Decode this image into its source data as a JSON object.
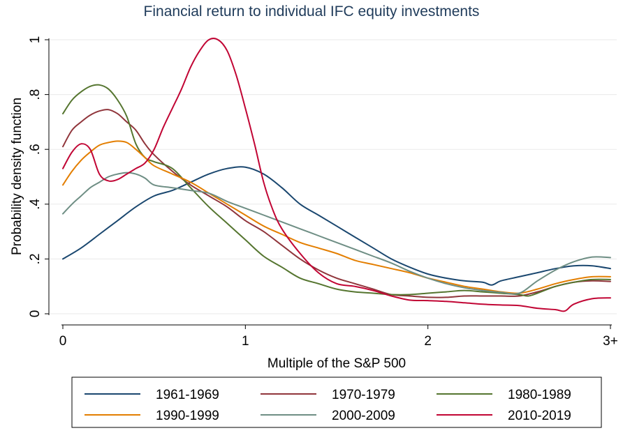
{
  "chart_data": {
    "type": "line",
    "title": "Financial return to individual IFC equity investments",
    "xlabel": "Multiple of the S&P 500",
    "ylabel": "Probability density function",
    "xlim": [
      0,
      3
    ],
    "ylim": [
      0,
      1
    ],
    "xticks": [
      {
        "value": 0,
        "label": "0"
      },
      {
        "value": 1,
        "label": "1"
      },
      {
        "value": 2,
        "label": "2"
      },
      {
        "value": 3,
        "label": "3+"
      }
    ],
    "yticks": [
      {
        "value": 0,
        "label": "0"
      },
      {
        "value": 0.2,
        "label": ".2"
      },
      {
        "value": 0.4,
        "label": ".4"
      },
      {
        "value": 0.6,
        "label": ".6"
      },
      {
        "value": 0.8,
        "label": ".8"
      },
      {
        "value": 1,
        "label": "1"
      }
    ],
    "grid": "horizontal",
    "legend_position": "bottom",
    "series": [
      {
        "name": "1961-1969",
        "color": "#1a476f",
        "points": [
          [
            0,
            0.2
          ],
          [
            0.1,
            0.24
          ],
          [
            0.2,
            0.29
          ],
          [
            0.3,
            0.34
          ],
          [
            0.4,
            0.39
          ],
          [
            0.5,
            0.43
          ],
          [
            0.6,
            0.45
          ],
          [
            0.7,
            0.48
          ],
          [
            0.8,
            0.51
          ],
          [
            0.9,
            0.53
          ],
          [
            1.0,
            0.535
          ],
          [
            1.1,
            0.51
          ],
          [
            1.2,
            0.46
          ],
          [
            1.3,
            0.4
          ],
          [
            1.4,
            0.36
          ],
          [
            1.5,
            0.32
          ],
          [
            1.6,
            0.28
          ],
          [
            1.7,
            0.24
          ],
          [
            1.8,
            0.2
          ],
          [
            1.9,
            0.17
          ],
          [
            2.0,
            0.145
          ],
          [
            2.1,
            0.13
          ],
          [
            2.2,
            0.12
          ],
          [
            2.3,
            0.115
          ],
          [
            2.35,
            0.105
          ],
          [
            2.4,
            0.12
          ],
          [
            2.5,
            0.135
          ],
          [
            2.6,
            0.15
          ],
          [
            2.7,
            0.165
          ],
          [
            2.8,
            0.175
          ],
          [
            2.9,
            0.175
          ],
          [
            3.0,
            0.165
          ]
        ]
      },
      {
        "name": "1970-1979",
        "color": "#90353b",
        "points": [
          [
            0,
            0.61
          ],
          [
            0.05,
            0.67
          ],
          [
            0.1,
            0.7
          ],
          [
            0.15,
            0.725
          ],
          [
            0.2,
            0.74
          ],
          [
            0.25,
            0.745
          ],
          [
            0.3,
            0.73
          ],
          [
            0.35,
            0.7
          ],
          [
            0.4,
            0.67
          ],
          [
            0.45,
            0.62
          ],
          [
            0.5,
            0.58
          ],
          [
            0.6,
            0.52
          ],
          [
            0.7,
            0.47
          ],
          [
            0.8,
            0.43
          ],
          [
            0.9,
            0.39
          ],
          [
            1.0,
            0.34
          ],
          [
            1.1,
            0.3
          ],
          [
            1.2,
            0.25
          ],
          [
            1.3,
            0.2
          ],
          [
            1.4,
            0.16
          ],
          [
            1.5,
            0.13
          ],
          [
            1.6,
            0.11
          ],
          [
            1.7,
            0.09
          ],
          [
            1.8,
            0.07
          ],
          [
            1.9,
            0.065
          ],
          [
            2.0,
            0.06
          ],
          [
            2.1,
            0.06
          ],
          [
            2.2,
            0.065
          ],
          [
            2.3,
            0.065
          ],
          [
            2.4,
            0.065
          ],
          [
            2.5,
            0.065
          ],
          [
            2.6,
            0.08
          ],
          [
            2.7,
            0.1
          ],
          [
            2.8,
            0.115
          ],
          [
            2.9,
            0.12
          ],
          [
            3.0,
            0.118
          ]
        ]
      },
      {
        "name": "1980-1989",
        "color": "#55752f",
        "points": [
          [
            0,
            0.73
          ],
          [
            0.05,
            0.78
          ],
          [
            0.1,
            0.81
          ],
          [
            0.15,
            0.83
          ],
          [
            0.2,
            0.835
          ],
          [
            0.25,
            0.82
          ],
          [
            0.3,
            0.78
          ],
          [
            0.35,
            0.72
          ],
          [
            0.4,
            0.62
          ],
          [
            0.45,
            0.57
          ],
          [
            0.5,
            0.555
          ],
          [
            0.6,
            0.53
          ],
          [
            0.7,
            0.46
          ],
          [
            0.8,
            0.39
          ],
          [
            0.9,
            0.33
          ],
          [
            1.0,
            0.27
          ],
          [
            1.1,
            0.21
          ],
          [
            1.2,
            0.17
          ],
          [
            1.3,
            0.13
          ],
          [
            1.4,
            0.11
          ],
          [
            1.5,
            0.09
          ],
          [
            1.6,
            0.08
          ],
          [
            1.7,
            0.075
          ],
          [
            1.8,
            0.07
          ],
          [
            1.9,
            0.07
          ],
          [
            2.0,
            0.075
          ],
          [
            2.1,
            0.08
          ],
          [
            2.2,
            0.085
          ],
          [
            2.3,
            0.08
          ],
          [
            2.4,
            0.075
          ],
          [
            2.5,
            0.07
          ],
          [
            2.55,
            0.065
          ],
          [
            2.6,
            0.075
          ],
          [
            2.7,
            0.1
          ],
          [
            2.8,
            0.115
          ],
          [
            2.9,
            0.125
          ],
          [
            3.0,
            0.125
          ]
        ]
      },
      {
        "name": "1990-1999",
        "color": "#e37e00",
        "points": [
          [
            0,
            0.47
          ],
          [
            0.05,
            0.52
          ],
          [
            0.1,
            0.56
          ],
          [
            0.15,
            0.59
          ],
          [
            0.2,
            0.615
          ],
          [
            0.25,
            0.625
          ],
          [
            0.3,
            0.63
          ],
          [
            0.35,
            0.625
          ],
          [
            0.4,
            0.6
          ],
          [
            0.45,
            0.57
          ],
          [
            0.5,
            0.54
          ],
          [
            0.6,
            0.51
          ],
          [
            0.7,
            0.48
          ],
          [
            0.8,
            0.44
          ],
          [
            0.9,
            0.4
          ],
          [
            1.0,
            0.36
          ],
          [
            1.1,
            0.32
          ],
          [
            1.2,
            0.29
          ],
          [
            1.3,
            0.26
          ],
          [
            1.4,
            0.24
          ],
          [
            1.5,
            0.22
          ],
          [
            1.6,
            0.195
          ],
          [
            1.7,
            0.18
          ],
          [
            1.8,
            0.165
          ],
          [
            1.9,
            0.15
          ],
          [
            2.0,
            0.13
          ],
          [
            2.1,
            0.115
          ],
          [
            2.2,
            0.1
          ],
          [
            2.3,
            0.09
          ],
          [
            2.4,
            0.08
          ],
          [
            2.5,
            0.075
          ],
          [
            2.6,
            0.09
          ],
          [
            2.7,
            0.11
          ],
          [
            2.8,
            0.125
          ],
          [
            2.9,
            0.135
          ],
          [
            3.0,
            0.135
          ]
        ]
      },
      {
        "name": "2000-2009",
        "color": "#6e8e84",
        "points": [
          [
            0,
            0.365
          ],
          [
            0.05,
            0.4
          ],
          [
            0.1,
            0.43
          ],
          [
            0.15,
            0.46
          ],
          [
            0.2,
            0.48
          ],
          [
            0.25,
            0.5
          ],
          [
            0.3,
            0.51
          ],
          [
            0.35,
            0.515
          ],
          [
            0.4,
            0.51
          ],
          [
            0.45,
            0.495
          ],
          [
            0.5,
            0.47
          ],
          [
            0.6,
            0.46
          ],
          [
            0.7,
            0.45
          ],
          [
            0.8,
            0.44
          ],
          [
            0.9,
            0.41
          ],
          [
            1.0,
            0.385
          ],
          [
            1.1,
            0.36
          ],
          [
            1.2,
            0.335
          ],
          [
            1.3,
            0.31
          ],
          [
            1.4,
            0.285
          ],
          [
            1.5,
            0.26
          ],
          [
            1.6,
            0.235
          ],
          [
            1.7,
            0.21
          ],
          [
            1.8,
            0.185
          ],
          [
            1.9,
            0.155
          ],
          [
            2.0,
            0.13
          ],
          [
            2.1,
            0.11
          ],
          [
            2.2,
            0.095
          ],
          [
            2.3,
            0.085
          ],
          [
            2.4,
            0.078
          ],
          [
            2.5,
            0.075
          ],
          [
            2.6,
            0.12
          ],
          [
            2.7,
            0.16
          ],
          [
            2.8,
            0.19
          ],
          [
            2.9,
            0.207
          ],
          [
            3.0,
            0.205
          ]
        ]
      },
      {
        "name": "2010-2019",
        "color": "#c10534",
        "points": [
          [
            0,
            0.53
          ],
          [
            0.05,
            0.59
          ],
          [
            0.1,
            0.62
          ],
          [
            0.15,
            0.6
          ],
          [
            0.2,
            0.51
          ],
          [
            0.25,
            0.485
          ],
          [
            0.3,
            0.49
          ],
          [
            0.35,
            0.51
          ],
          [
            0.4,
            0.53
          ],
          [
            0.45,
            0.55
          ],
          [
            0.5,
            0.6
          ],
          [
            0.55,
            0.68
          ],
          [
            0.6,
            0.75
          ],
          [
            0.65,
            0.82
          ],
          [
            0.7,
            0.9
          ],
          [
            0.75,
            0.96
          ],
          [
            0.8,
            1.0
          ],
          [
            0.85,
            1.0
          ],
          [
            0.9,
            0.96
          ],
          [
            0.95,
            0.87
          ],
          [
            1.0,
            0.75
          ],
          [
            1.05,
            0.62
          ],
          [
            1.1,
            0.48
          ],
          [
            1.15,
            0.38
          ],
          [
            1.2,
            0.31
          ],
          [
            1.3,
            0.22
          ],
          [
            1.4,
            0.15
          ],
          [
            1.5,
            0.11
          ],
          [
            1.6,
            0.1
          ],
          [
            1.7,
            0.085
          ],
          [
            1.8,
            0.065
          ],
          [
            1.9,
            0.05
          ],
          [
            2.0,
            0.048
          ],
          [
            2.1,
            0.045
          ],
          [
            2.2,
            0.04
          ],
          [
            2.3,
            0.035
          ],
          [
            2.4,
            0.032
          ],
          [
            2.5,
            0.03
          ],
          [
            2.6,
            0.02
          ],
          [
            2.7,
            0.015
          ],
          [
            2.75,
            0.01
          ],
          [
            2.8,
            0.035
          ],
          [
            2.9,
            0.055
          ],
          [
            3.0,
            0.058
          ]
        ]
      }
    ]
  }
}
